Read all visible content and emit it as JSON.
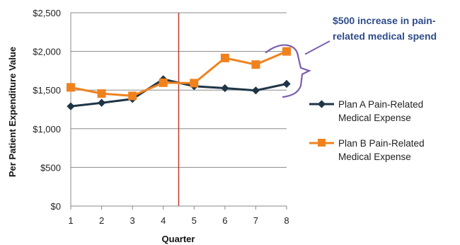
{
  "chart_data": {
    "type": "line",
    "title": "",
    "xlabel": "Quarter",
    "ylabel": "Per Patient Expenditure Value",
    "x": [
      1,
      2,
      3,
      4,
      5,
      6,
      7,
      8
    ],
    "xlim": [
      1,
      8
    ],
    "ylim": [
      0,
      2500
    ],
    "yticks": [
      0,
      500,
      1000,
      1500,
      2000,
      2500
    ],
    "ytick_labels": [
      "$0",
      "$500",
      "$1,000",
      "$1,500",
      "$2,000",
      "$2,500"
    ],
    "xtick_labels": [
      "1",
      "2",
      "3",
      "4",
      "5",
      "6",
      "7",
      "8"
    ],
    "grid": "horizontal",
    "legend_position": "right",
    "series": [
      {
        "name_line1": "Plan A Pain-Related",
        "name_line2": "Medical Expense",
        "marker": "diamond",
        "color": "#1f3547",
        "values": [
          1290,
          1335,
          1385,
          1640,
          1550,
          1525,
          1495,
          1580
        ]
      },
      {
        "name_line1": "Plan B Pain-Related",
        "name_line2": "Medical Expense",
        "marker": "square",
        "color": "#f0821e",
        "values": [
          1535,
          1455,
          1425,
          1595,
          1590,
          1915,
          1830,
          2000
        ]
      }
    ],
    "reference_line": {
      "x": 4.5,
      "color": "#c0392b"
    },
    "annotation": {
      "line1": "$500 increase in pain-",
      "line2": "related medical spend",
      "color": "#2e4d8a",
      "brace_color": "#7b5fb0",
      "span": [
        1500,
        2000
      ],
      "at_x": 8
    }
  }
}
